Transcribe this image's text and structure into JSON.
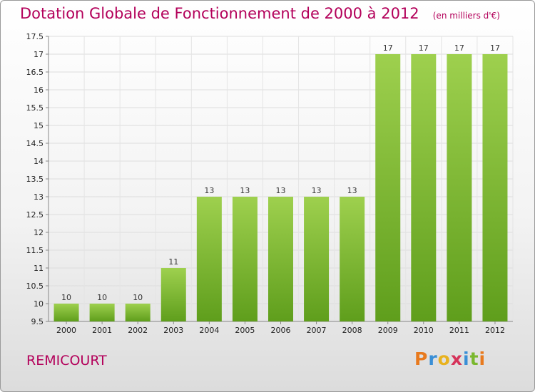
{
  "chart_data": {
    "type": "bar",
    "title": "Dotation Globale de Fonctionnement de 2000 à 2012",
    "unit_note": "(en milliers d'€)",
    "categories": [
      "2000",
      "2001",
      "2002",
      "2003",
      "2004",
      "2005",
      "2006",
      "2007",
      "2008",
      "2009",
      "2010",
      "2011",
      "2012"
    ],
    "values": [
      10,
      10,
      10,
      11,
      13,
      13,
      13,
      13,
      13,
      17,
      17,
      17,
      17
    ],
    "ylim": [
      9.5,
      17.5
    ],
    "yticks": [
      "9.5",
      "10",
      "10.5",
      "11",
      "11.5",
      "12",
      "12.5",
      "13",
      "13.5",
      "14",
      "14.5",
      "15",
      "15.5",
      "16",
      "16.5",
      "17",
      "17.5"
    ],
    "grid": true,
    "bar_color": "#7ab82e"
  },
  "commune": "REMICOURT",
  "brand": {
    "letters": [
      "P",
      "r",
      "o",
      "x",
      "i",
      "t",
      "i"
    ],
    "colors": [
      "#e87a1e",
      "#3a8fd6",
      "#e8b21e",
      "#d6335a",
      "#3a8fd6",
      "#7ab82e",
      "#e87a1e"
    ]
  }
}
